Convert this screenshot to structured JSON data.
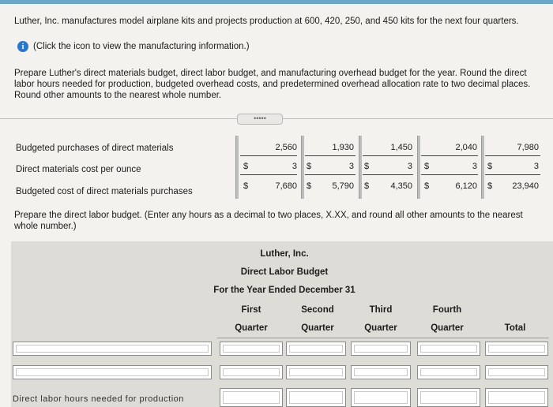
{
  "intro": "Luther, Inc. manufactures model airplane kits and projects production at 600, 420, 250, and 450 kits for the next four quarters.",
  "info_link": "(Click the icon to view the manufacturing information.)",
  "info_icon": "info-icon",
  "instructions": "Prepare Luther's direct materials budget, direct labor budget, and manufacturing overhead budget for the year. Round the direct labor hours needed for production, budgeted overhead costs, and predetermined overhead allocation rate to two decimal places. Round other amounts to the nearest whole number.",
  "ellipsis": "•••••",
  "materials": {
    "rows": [
      {
        "label": "Budgeted purchases of direct materials",
        "values": [
          "2,560",
          "1,930",
          "1,450",
          "2,040",
          "7,980"
        ],
        "dollar": false
      },
      {
        "label": "Direct materials cost per ounce",
        "values": [
          "3",
          "3",
          "3",
          "3",
          "3"
        ],
        "dollar": true
      },
      {
        "label": "Budgeted cost of direct materials purchases",
        "values": [
          "7,680",
          "5,790",
          "4,350",
          "6,120",
          "23,940"
        ],
        "dollar": true
      }
    ],
    "currency": "$"
  },
  "labor_instructions": "Prepare the direct labor budget. (Enter any hours as a decimal to two places, X.XX, and round all other amounts to the nearest whole number.)",
  "labor_budget": {
    "company": "Luther, Inc.",
    "title": "Direct Labor Budget",
    "period": "For the Year Ended December 31",
    "columns": [
      {
        "top": "First",
        "bottom": "Quarter"
      },
      {
        "top": "Second",
        "bottom": "Quarter"
      },
      {
        "top": "Third",
        "bottom": "Quarter"
      },
      {
        "top": "Fourth",
        "bottom": "Quarter"
      },
      {
        "top": "",
        "bottom": "Total"
      }
    ],
    "cut_label": "Direct labor hours needed for production"
  }
}
